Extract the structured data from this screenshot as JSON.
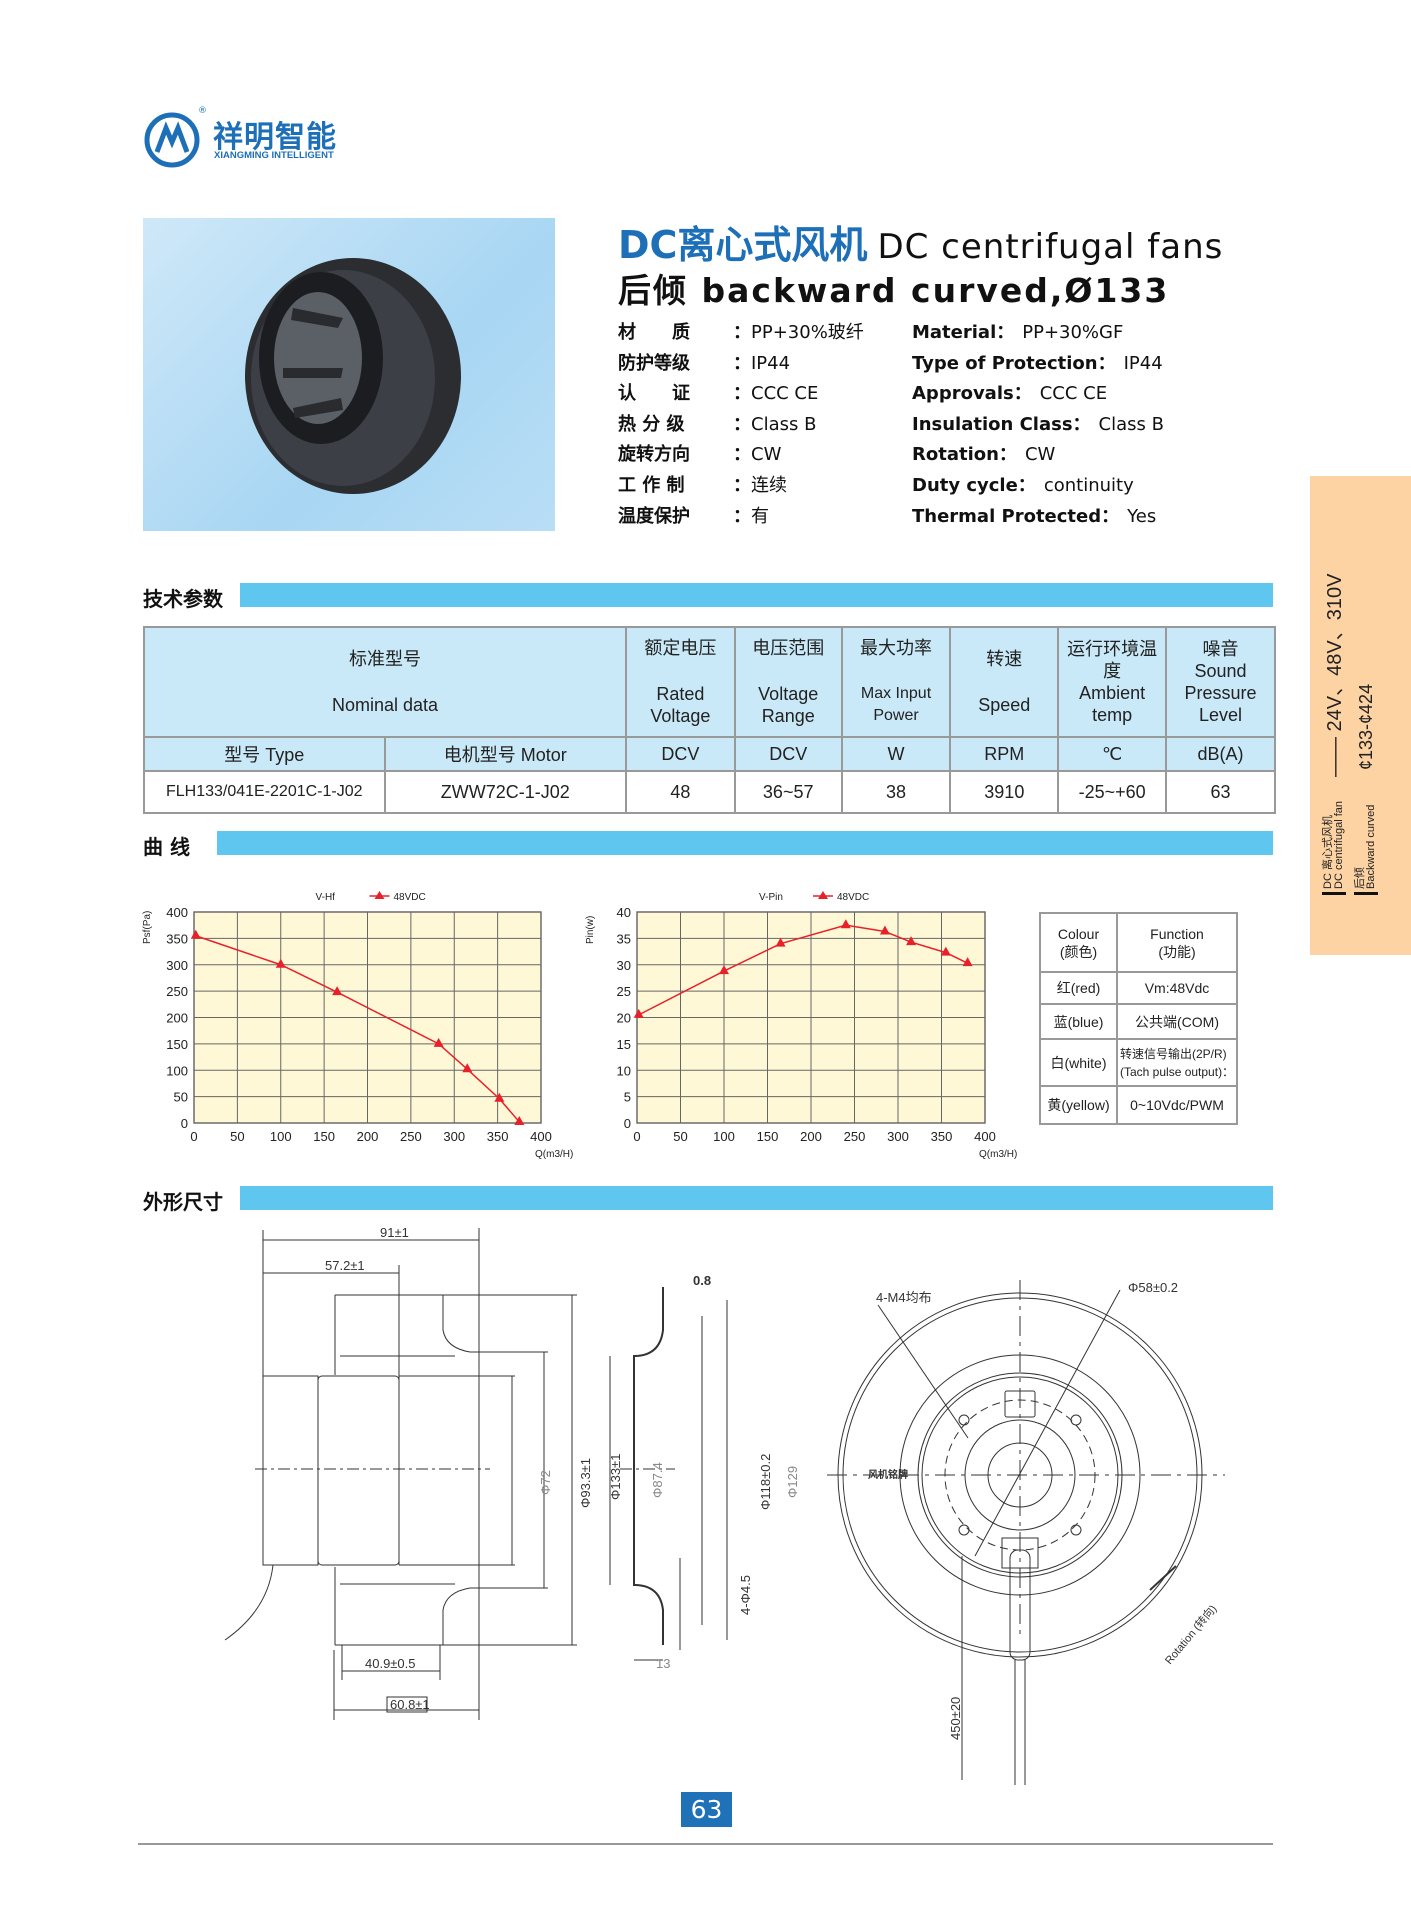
{
  "brand": {
    "name_cn": "祥明智能",
    "name_en": "XIANGMING INTELLIGENT",
    "registered": "®",
    "color": "#1d6fb8"
  },
  "header": {
    "title_cn": "DC离心式风机",
    "title_en": "DC centrifugal fans",
    "subtitle": "后倾  backward curved,Ø133"
  },
  "specs_cn": [
    {
      "k": "材　　质",
      "v": "PP+30%玻纤"
    },
    {
      "k": "防护等级",
      "v": "IP44"
    },
    {
      "k": "认　　证",
      "v": "CCC  CE"
    },
    {
      "k": "热 分 级",
      "v": "Class  B"
    },
    {
      "k": "旋转方向",
      "v": "CW"
    },
    {
      "k": "工 作 制",
      "v": "连续"
    },
    {
      "k": "温度保护",
      "v": "有"
    }
  ],
  "specs_en": [
    {
      "k": "Material：",
      "v": "PP+30%GF"
    },
    {
      "k": "Type of Protection：",
      "v": "IP44"
    },
    {
      "k": "Approvals：",
      "v": "CCC  CE"
    },
    {
      "k": "Insulation Class：",
      "v": "Class  B"
    },
    {
      "k": "Rotation：",
      "v": "CW"
    },
    {
      "k": "Duty cycle：",
      "v": "continuity"
    },
    {
      "k": "Thermal  Protected：",
      "v": "Yes"
    }
  ],
  "sections": {
    "tech": "技术参数",
    "curves": "曲  线",
    "dims": "外形尺寸"
  },
  "table": {
    "nominal_cn": "标准型号",
    "nominal_en": "Nominal  data",
    "columns": [
      {
        "cn": "额定电压",
        "en": "Rated Voltage",
        "unit": "DCV"
      },
      {
        "cn": "电压范围",
        "en": "Voltage Range",
        "unit": "DCV"
      },
      {
        "cn": "最大功率",
        "en": "Max Input Power",
        "unit": "W"
      },
      {
        "cn": "转速",
        "en": "Speed",
        "unit": "RPM"
      },
      {
        "cn": "运行环境温度",
        "en": "Ambient temp",
        "unit": "℃"
      },
      {
        "cn": "噪音",
        "en": "Sound Pressure Level",
        "unit": "dB(A)"
      }
    ],
    "type_label": "型号  Type",
    "motor_label": "电机型号  Motor",
    "rows": [
      {
        "type": "FLH133/041E-2201C-1-J02",
        "motor": "ZWW72C-1-J02",
        "values": [
          "48",
          "36~57",
          "38",
          "3910",
          "-25~+60",
          "63"
        ]
      }
    ]
  },
  "chart_data": [
    {
      "type": "line",
      "title": "V-Hf",
      "xlabel": "Q(m3/H)",
      "ylabel": "Psf(Pa)",
      "xlim": [
        0,
        400
      ],
      "ylim": [
        0,
        400
      ],
      "xticks": [
        "0",
        "50",
        "100",
        "150",
        "200",
        "250",
        "300",
        "350",
        "400"
      ],
      "yticks": [
        "0",
        "50",
        "100",
        "150",
        "200",
        "250",
        "300",
        "350",
        "400"
      ],
      "grid": true,
      "legend": "top",
      "series": [
        {
          "name": "48VDC",
          "color": "#e8202a",
          "marker": "triangle",
          "x": [
            2,
            100,
            165,
            282,
            315,
            352,
            375
          ],
          "y": [
            355,
            300,
            248,
            150,
            102,
            46,
            2
          ]
        }
      ]
    },
    {
      "type": "line",
      "title": "V-Pin",
      "xlabel": "Q(m3/H)",
      "ylabel": "Pin(w)",
      "xlim": [
        0,
        400
      ],
      "ylim": [
        0,
        40
      ],
      "xticks": [
        "0",
        "50",
        "100",
        "150",
        "200",
        "250",
        "300",
        "350",
        "400"
      ],
      "yticks": [
        "0",
        "5",
        "10",
        "15",
        "20",
        "25",
        "30",
        "35",
        "40"
      ],
      "grid": true,
      "legend": "top",
      "series": [
        {
          "name": "48VDC",
          "color": "#e8202a",
          "marker": "triangle",
          "x": [
            2,
            100,
            165,
            240,
            285,
            315,
            355,
            380
          ],
          "y": [
            20.5,
            28.8,
            34,
            37.5,
            36.3,
            34.3,
            32.3,
            30.3
          ]
        }
      ]
    }
  ],
  "chart_bg": "#fff8d6",
  "wires": {
    "head_colour": "Colour",
    "head_colour_cn": "(颜色)",
    "head_function": "Function",
    "head_function_cn": "(功能)",
    "rows": [
      {
        "colour": "红(red)",
        "function": "Vm:48Vdc"
      },
      {
        "colour": "蓝(blue)",
        "function": "公共端(COM)"
      },
      {
        "colour": "白(white)",
        "function": "转速信号输出(2P/R)",
        "function2": "(Tach pulse output)："
      },
      {
        "colour": "黄(yellow)",
        "function": "0~10Vdc/PWM"
      }
    ]
  },
  "drawing": {
    "d91": "91±1",
    "d57": "57.2±1",
    "d72": "Φ72",
    "d93": "Φ93.3±1",
    "d133": "Φ133±1",
    "d409": "40.9±0.5",
    "d608": "60.8±1",
    "t08": "0.8",
    "d874": "Φ87.4",
    "d118": "Φ118±0.2",
    "d129": "Φ129",
    "holes": "4-Φ4.5",
    "d13": "13",
    "m4": "4-M4均布",
    "d58": "Φ58±0.2",
    "nameplate": "风机铭牌",
    "d450": "450±20",
    "rotation": "Rotation (转向)"
  },
  "page_number": "63",
  "side_tab": {
    "cn1": "DC 离心式风机",
    "en1": "DC centrifugal fan",
    "voltages": "—— 24V、48V、310V",
    "cn2": "后倾",
    "en2": "Backward curved",
    "range": "¢133-¢424",
    "bg": "#fdd3a3"
  }
}
